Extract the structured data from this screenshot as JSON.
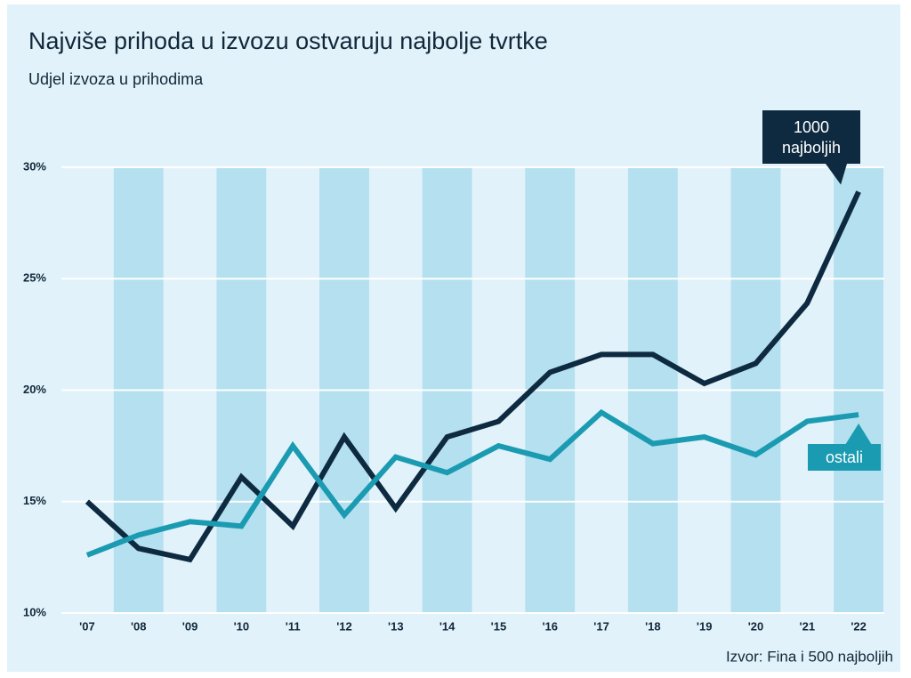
{
  "chart_data": {
    "type": "line",
    "title": "Najviše prihoda u izvozu ostvaruju najbolje tvrtke",
    "subtitle": "Udjel izvoza u prihodima",
    "source": "Izvor: Fina i 500 najboljih",
    "categories": [
      "'07",
      "'08",
      "'09",
      "'10",
      "'11",
      "'12",
      "'13",
      "'14",
      "'15",
      "'16",
      "'17",
      "'18",
      "'19",
      "'20",
      "'21",
      "'22"
    ],
    "series": [
      {
        "name": "1000 najboljih",
        "color": "#0e2a40",
        "values": [
          15.0,
          12.9,
          12.4,
          16.1,
          13.9,
          17.9,
          14.7,
          17.9,
          18.6,
          20.8,
          21.6,
          21.6,
          20.3,
          21.2,
          23.9,
          28.9
        ]
      },
      {
        "name": "ostali",
        "color": "#1a9bb1",
        "values": [
          12.6,
          13.5,
          14.1,
          13.9,
          17.5,
          14.4,
          17.0,
          16.3,
          17.5,
          16.9,
          19.0,
          17.6,
          17.9,
          17.1,
          18.6,
          18.9
        ]
      }
    ],
    "ylim": [
      10,
      30
    ],
    "yticks": [
      {
        "value": 10,
        "label": "10%"
      },
      {
        "value": 15,
        "label": "15%"
      },
      {
        "value": 20,
        "label": "20%"
      },
      {
        "value": 25,
        "label": "25%"
      },
      {
        "value": 30,
        "label": "30%"
      }
    ],
    "grid": true
  }
}
